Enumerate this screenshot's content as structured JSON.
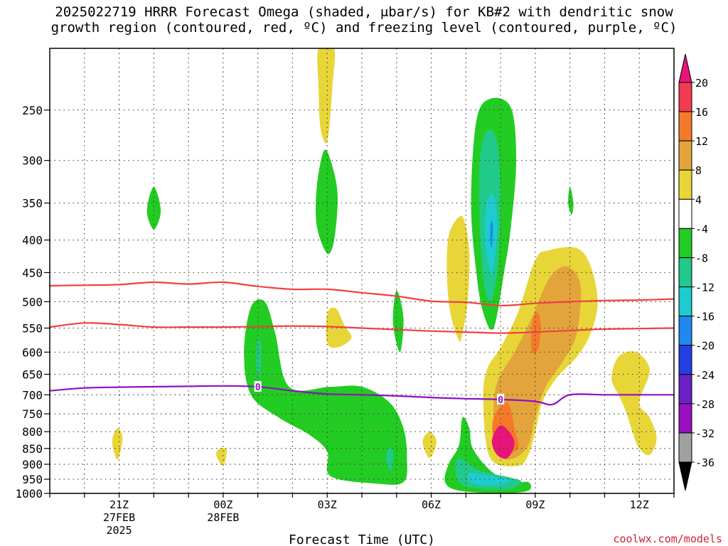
{
  "header": {
    "title_line1": "2025022719 HRRR Forecast Omega (shaded, μbar/s) for KB#2 with dendritic snow",
    "title_line2": "growth region (contoured, red, ºC) and freezing level (contoured, purple, ºC)"
  },
  "footer": {
    "credit": "coolwx.com/models"
  },
  "chart_data": {
    "type": "heatmap",
    "title": "2025022719 HRRR Forecast Omega (shaded, μbar/s) for KB#2 with dendritic snow growth region (contoured, red, ºC) and freezing level (contoured, purple, ºC)",
    "xlabel": "Forecast Time (UTC)",
    "ylabel": "",
    "y_scale": "log",
    "y_inverted": true,
    "ylim": [
      1000,
      200
    ],
    "y_ticks": [
      250,
      300,
      350,
      400,
      450,
      500,
      550,
      600,
      650,
      700,
      750,
      800,
      850,
      900,
      950,
      1000
    ],
    "x_hours": [
      19,
      20,
      21,
      22,
      23,
      24,
      25,
      26,
      27,
      28,
      29,
      30,
      31,
      32,
      33,
      34,
      35,
      36,
      37
    ],
    "x_range_hours": [
      19,
      37
    ],
    "x_ticks": [
      {
        "hour": 21,
        "line1": "21Z",
        "line2": "27FEB",
        "line3": "2025"
      },
      {
        "hour": 24,
        "line1": "00Z",
        "line2": "28FEB",
        "line3": ""
      },
      {
        "hour": 27,
        "line1": "03Z",
        "line2": "",
        "line3": ""
      },
      {
        "hour": 30,
        "line1": "06Z",
        "line2": "",
        "line3": ""
      },
      {
        "hour": 33,
        "line1": "09Z",
        "line2": "",
        "line3": ""
      },
      {
        "hour": 36,
        "line1": "12Z",
        "line2": "",
        "line3": ""
      }
    ],
    "grid": true,
    "colorbar": {
      "labels": [
        "20",
        "16",
        "12",
        "8",
        "4",
        "-4",
        "-8",
        "-12",
        "-16",
        "-20",
        "-24",
        "-28",
        "-32",
        "-36"
      ],
      "colors": [
        "#f03c50",
        "#f47a2a",
        "#e3a43c",
        "#e8d638",
        "#ffffff",
        "#22cc22",
        "#21c98a",
        "#1ecbd0",
        "#1f88ee",
        "#2240e0",
        "#6a22c8",
        "#9a10c0",
        "#a0a0a0"
      ],
      "top_color": "#e8147a",
      "bottom_color": "#000000"
    },
    "contours": {
      "dgz_minus12": {
        "color": "#f04040",
        "hours": [
          19,
          20,
          21,
          22,
          23,
          24,
          25,
          26,
          27,
          28,
          29,
          30,
          31,
          32,
          33,
          34,
          35,
          36,
          37
        ],
        "pressure": [
          548,
          540,
          543,
          548,
          548,
          548,
          547,
          546,
          547,
          550,
          553,
          556,
          558,
          560,
          558,
          555,
          552,
          551,
          550
        ]
      },
      "dgz_minus18": {
        "color": "#f04040",
        "hours": [
          19,
          20,
          21,
          22,
          23,
          24,
          25,
          26,
          27,
          28,
          29,
          30,
          31,
          32,
          33,
          34,
          35,
          36,
          37
        ],
        "pressure": [
          472,
          471,
          470,
          466,
          469,
          466,
          473,
          478,
          478,
          484,
          490,
          499,
          501,
          507,
          503,
          500,
          498,
          497,
          495
        ]
      },
      "freezing_level": {
        "color": "#9010c0",
        "label": "0",
        "hours": [
          19,
          20,
          21,
          22,
          23,
          24,
          25,
          26,
          27,
          28,
          29,
          30,
          31,
          32,
          33,
          33.5,
          34,
          35,
          36,
          37
        ],
        "pressure": [
          690,
          683,
          681,
          680,
          679,
          678,
          680,
          690,
          698,
          700,
          703,
          707,
          710,
          712,
          717,
          725,
          700,
          700,
          700,
          700
        ],
        "label_hours": [
          25,
          32
        ]
      }
    },
    "omega_shading": [
      {
        "value": 4,
        "color": "#e8d638",
        "pts": [
          [
            26.75,
            200
          ],
          [
            27.2,
            200
          ],
          [
            27.15,
            230
          ],
          [
            27.05,
            270
          ],
          [
            26.95,
            282
          ],
          [
            26.8,
            265
          ],
          [
            26.75,
            230
          ]
        ]
      },
      {
        "value": 4,
        "color": "#e8d638",
        "pts": [
          [
            30.5,
            395
          ],
          [
            30.75,
            370
          ],
          [
            30.95,
            372
          ],
          [
            31.1,
            420
          ],
          [
            31.05,
            500
          ],
          [
            30.9,
            560
          ],
          [
            30.8,
            575
          ],
          [
            30.55,
            520
          ],
          [
            30.45,
            450
          ]
        ]
      },
      {
        "value": 4,
        "color": "#e8d638",
        "pts": [
          [
            27.0,
            522
          ],
          [
            27.25,
            512
          ],
          [
            27.5,
            545
          ],
          [
            27.7,
            570
          ],
          [
            27.3,
            590
          ],
          [
            27.0,
            580
          ]
        ]
      },
      {
        "value": 4,
        "color": "#e8d638",
        "pts": [
          [
            33.0,
            430
          ],
          [
            33.4,
            415
          ],
          [
            34.2,
            412
          ],
          [
            34.6,
            440
          ],
          [
            34.8,
            500
          ],
          [
            34.6,
            560
          ],
          [
            34.2,
            610
          ],
          [
            33.6,
            660
          ],
          [
            33.2,
            720
          ],
          [
            33.0,
            800
          ],
          [
            32.8,
            870
          ],
          [
            32.5,
            905
          ],
          [
            31.7,
            880
          ],
          [
            31.5,
            720
          ],
          [
            31.6,
            640
          ],
          [
            32.0,
            590
          ],
          [
            32.5,
            520
          ]
        ]
      },
      {
        "value": 4,
        "color": "#e8d638",
        "pts": [
          [
            35.4,
            610
          ],
          [
            35.9,
            600
          ],
          [
            36.3,
            640
          ],
          [
            36.0,
            720
          ],
          [
            36.3,
            760
          ],
          [
            36.5,
            820
          ],
          [
            36.3,
            870
          ],
          [
            36.0,
            850
          ],
          [
            35.8,
            800
          ],
          [
            35.6,
            740
          ],
          [
            35.4,
            700
          ],
          [
            35.2,
            660
          ]
        ]
      },
      {
        "value": 4,
        "color": "#e8d638",
        "pts": [
          [
            20.95,
            790
          ],
          [
            21.1,
            820
          ],
          [
            20.95,
            885
          ],
          [
            20.8,
            830
          ]
        ]
      },
      {
        "value": 4,
        "color": "#e8d638",
        "pts": [
          [
            23.9,
            850
          ],
          [
            24.1,
            855
          ],
          [
            24.0,
            905
          ],
          [
            23.8,
            870
          ]
        ]
      },
      {
        "value": 4,
        "color": "#e8d638",
        "pts": [
          [
            29.95,
            800
          ],
          [
            30.15,
            830
          ],
          [
            29.95,
            880
          ],
          [
            29.75,
            830
          ]
        ]
      },
      {
        "value": 8,
        "color": "#e3a43c",
        "pts": [
          [
            33.4,
            460
          ],
          [
            33.9,
            440
          ],
          [
            34.3,
            470
          ],
          [
            34.2,
            560
          ],
          [
            33.8,
            620
          ],
          [
            33.3,
            680
          ],
          [
            33.0,
            760
          ],
          [
            32.8,
            840
          ],
          [
            32.4,
            880
          ],
          [
            32.0,
            870
          ],
          [
            31.8,
            760
          ],
          [
            31.9,
            670
          ],
          [
            32.4,
            600
          ],
          [
            32.9,
            530
          ]
        ]
      },
      {
        "value": 12,
        "color": "#f47a2a",
        "pts": [
          [
            33.0,
            520
          ],
          [
            33.15,
            535
          ],
          [
            33.1,
            590
          ],
          [
            32.9,
            600
          ],
          [
            32.9,
            550
          ]
        ]
      },
      {
        "value": 12,
        "color": "#f47a2a",
        "pts": [
          [
            31.8,
            760
          ],
          [
            32.2,
            720
          ],
          [
            32.4,
            790
          ],
          [
            32.5,
            850
          ],
          [
            32.0,
            870
          ],
          [
            31.8,
            830
          ]
        ]
      },
      {
        "value": 20,
        "color": "#e8147a",
        "pts": [
          [
            31.9,
            790
          ],
          [
            32.1,
            785
          ],
          [
            32.4,
            830
          ],
          [
            32.2,
            880
          ],
          [
            31.9,
            870
          ],
          [
            31.75,
            830
          ]
        ]
      },
      {
        "value": -4,
        "color": "#22cc22",
        "pts": [
          [
            31.3,
            260
          ],
          [
            31.7,
            240
          ],
          [
            32.3,
            248
          ],
          [
            32.45,
            300
          ],
          [
            32.3,
            380
          ],
          [
            32.1,
            450
          ],
          [
            31.8,
            550
          ],
          [
            31.5,
            520
          ],
          [
            31.3,
            450
          ],
          [
            31.15,
            350
          ]
        ]
      },
      {
        "value": -4,
        "color": "#22cc22",
        "pts": [
          [
            26.9,
            290
          ],
          [
            27.1,
            300
          ],
          [
            27.3,
            340
          ],
          [
            27.2,
            400
          ],
          [
            27.0,
            420
          ],
          [
            26.7,
            380
          ],
          [
            26.7,
            330
          ]
        ]
      },
      {
        "value": -4,
        "color": "#22cc22",
        "pts": [
          [
            22.0,
            330
          ],
          [
            22.2,
            360
          ],
          [
            22.0,
            385
          ],
          [
            21.8,
            360
          ]
        ]
      },
      {
        "value": -4,
        "color": "#22cc22",
        "pts": [
          [
            34.0,
            330
          ],
          [
            34.1,
            350
          ],
          [
            34.05,
            365
          ],
          [
            33.95,
            350
          ]
        ]
      },
      {
        "value": -4,
        "color": "#22cc22",
        "pts": [
          [
            29.0,
            480
          ],
          [
            29.2,
            530
          ],
          [
            29.1,
            600
          ],
          [
            28.9,
            540
          ]
        ]
      },
      {
        "value": -4,
        "color": "#22cc22",
        "pts": [
          [
            24.8,
            510
          ],
          [
            25.2,
            500
          ],
          [
            25.5,
            560
          ],
          [
            25.9,
            680
          ],
          [
            27.1,
            680
          ],
          [
            28.0,
            680
          ],
          [
            28.8,
            720
          ],
          [
            29.2,
            790
          ],
          [
            29.3,
            880
          ],
          [
            29.2,
            960
          ],
          [
            28.4,
            965
          ],
          [
            27.1,
            940
          ],
          [
            27.0,
            860
          ],
          [
            26.5,
            810
          ],
          [
            25.6,
            760
          ],
          [
            24.8,
            700
          ],
          [
            24.6,
            600
          ]
        ]
      },
      {
        "value": -4,
        "color": "#22cc22",
        "pts": [
          [
            30.9,
            760
          ],
          [
            31.1,
            790
          ],
          [
            31.2,
            850
          ],
          [
            31.7,
            920
          ],
          [
            32.3,
            960
          ],
          [
            32.8,
            960
          ],
          [
            32.8,
            990
          ],
          [
            32.0,
            1000
          ],
          [
            30.8,
            990
          ],
          [
            30.4,
            960
          ],
          [
            30.5,
            900
          ],
          [
            30.8,
            840
          ]
        ]
      },
      {
        "value": -8,
        "color": "#21c98a",
        "pts": [
          [
            31.4,
            300
          ],
          [
            31.6,
            270
          ],
          [
            31.9,
            280
          ],
          [
            32.0,
            350
          ],
          [
            31.9,
            450
          ],
          [
            31.7,
            500
          ],
          [
            31.5,
            460
          ],
          [
            31.4,
            380
          ]
        ]
      },
      {
        "value": -8,
        "color": "#21c98a",
        "pts": [
          [
            25.0,
            570
          ],
          [
            25.1,
            590
          ],
          [
            25.05,
            660
          ],
          [
            24.95,
            630
          ]
        ]
      },
      {
        "value": -8,
        "color": "#21c98a",
        "pts": [
          [
            28.75,
            850
          ],
          [
            28.9,
            860
          ],
          [
            28.85,
            920
          ],
          [
            28.7,
            890
          ]
        ]
      },
      {
        "value": -8,
        "color": "#21c98a",
        "pts": [
          [
            30.8,
            880
          ],
          [
            31.4,
            920
          ],
          [
            32.3,
            945
          ],
          [
            32.6,
            960
          ],
          [
            32.2,
            985
          ],
          [
            31.2,
            980
          ],
          [
            30.8,
            960
          ],
          [
            30.7,
            920
          ]
        ]
      },
      {
        "value": -12,
        "color": "#1ecbd0",
        "pts": [
          [
            31.6,
            350
          ],
          [
            31.8,
            340
          ],
          [
            31.9,
            380
          ],
          [
            31.8,
            440
          ],
          [
            31.7,
            450
          ],
          [
            31.55,
            400
          ]
        ]
      },
      {
        "value": -12,
        "color": "#1ecbd0",
        "pts": [
          [
            31.1,
            930
          ],
          [
            31.8,
            940
          ],
          [
            32.3,
            955
          ],
          [
            31.9,
            970
          ],
          [
            31.2,
            965
          ]
        ]
      },
      {
        "value": -16,
        "color": "#1f88ee",
        "pts": [
          [
            31.72,
            375
          ],
          [
            31.78,
            380
          ],
          [
            31.75,
            410
          ],
          [
            31.7,
            400
          ]
        ]
      }
    ],
    "ground_band": {
      "color": "#a0522d",
      "pressure_from": 1010
    }
  }
}
